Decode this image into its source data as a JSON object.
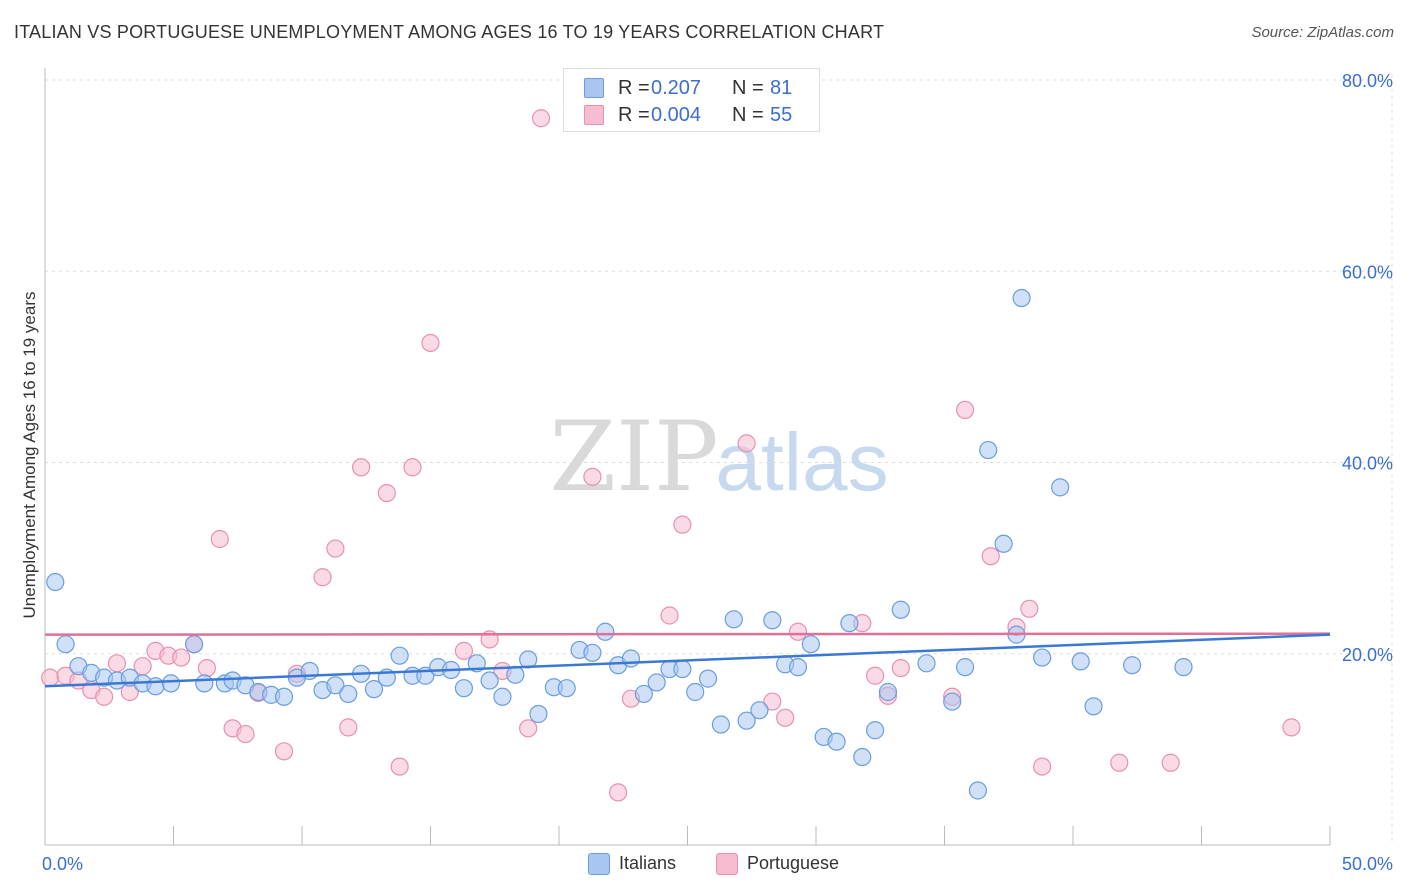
{
  "title": "ITALIAN VS PORTUGUESE UNEMPLOYMENT AMONG AGES 16 TO 19 YEARS CORRELATION CHART",
  "source": "Source: ZipAtlas.com",
  "watermark": {
    "zip": "ZIP",
    "atlas": "atlas"
  },
  "legend_top": {
    "rows": [
      {
        "r_label": "R =",
        "r_value": "0.207",
        "n_label": "N =",
        "n_value": "81"
      },
      {
        "r_label": "R =",
        "r_value": "0.004",
        "n_label": "N =",
        "n_value": "55"
      }
    ]
  },
  "legend_bottom": {
    "italians": "Italians",
    "portuguese": "Portuguese"
  },
  "colors": {
    "italians_fill": "#a8c6f0",
    "italians_stroke": "#6a9ee0",
    "italians_line": "#3a78d4",
    "portuguese_fill": "#f6bcd0",
    "portuguese_stroke": "#e990b0",
    "portuguese_line": "#e07098",
    "tick_text": "#3a6fd0",
    "grid": "#dddddd"
  },
  "chart_data": {
    "type": "scatter",
    "title": "ITALIAN VS PORTUGUESE UNEMPLOYMENT AMONG AGES 16 TO 19 YEARS CORRELATION CHART",
    "xlabel": "",
    "ylabel": "Unemployment Among Ages 16 to 19 years",
    "xlim": [
      0,
      50
    ],
    "ylim": [
      0,
      80
    ],
    "x_tick_labels": [
      "0.0%",
      "50.0%"
    ],
    "y_ticks": [
      20,
      40,
      60,
      80
    ],
    "y_tick_labels": [
      "20.0%",
      "40.0%",
      "60.0%",
      "80.0%"
    ],
    "grid": true,
    "legend_placement": "top-center",
    "series": [
      {
        "name": "Italians",
        "r": 0.207,
        "n": 81,
        "trend": [
          [
            0,
            16.6
          ],
          [
            50,
            22.0
          ]
        ],
        "points": [
          [
            0.4,
            27.5
          ],
          [
            0.8,
            21.0
          ],
          [
            1.3,
            18.7
          ],
          [
            1.8,
            18.0
          ],
          [
            2.3,
            17.5
          ],
          [
            2.8,
            17.2
          ],
          [
            3.3,
            17.5
          ],
          [
            3.8,
            16.9
          ],
          [
            4.3,
            16.6
          ],
          [
            4.9,
            16.9
          ],
          [
            5.8,
            21.0
          ],
          [
            6.2,
            16.9
          ],
          [
            7.0,
            16.9
          ],
          [
            7.3,
            17.2
          ],
          [
            7.8,
            16.7
          ],
          [
            8.3,
            16.0
          ],
          [
            8.8,
            15.7
          ],
          [
            9.3,
            15.5
          ],
          [
            9.8,
            17.5
          ],
          [
            10.3,
            18.2
          ],
          [
            10.8,
            16.2
          ],
          [
            11.3,
            16.7
          ],
          [
            11.8,
            15.8
          ],
          [
            12.3,
            17.9
          ],
          [
            12.8,
            16.3
          ],
          [
            13.3,
            17.5
          ],
          [
            13.8,
            19.8
          ],
          [
            14.3,
            17.7
          ],
          [
            14.8,
            17.7
          ],
          [
            15.3,
            18.6
          ],
          [
            15.8,
            18.3
          ],
          [
            16.3,
            16.4
          ],
          [
            16.8,
            19.0
          ],
          [
            17.3,
            17.2
          ],
          [
            17.8,
            15.5
          ],
          [
            18.3,
            17.8
          ],
          [
            18.8,
            19.4
          ],
          [
            19.2,
            13.7
          ],
          [
            19.8,
            16.5
          ],
          [
            20.3,
            16.4
          ],
          [
            20.8,
            20.4
          ],
          [
            21.3,
            20.1
          ],
          [
            21.8,
            22.3
          ],
          [
            22.3,
            18.8
          ],
          [
            22.8,
            19.5
          ],
          [
            23.3,
            15.8
          ],
          [
            23.8,
            17.0
          ],
          [
            24.3,
            18.4
          ],
          [
            24.8,
            18.4
          ],
          [
            25.3,
            16.0
          ],
          [
            25.8,
            17.4
          ],
          [
            26.3,
            12.6
          ],
          [
            26.8,
            23.6
          ],
          [
            27.3,
            13.0
          ],
          [
            27.8,
            14.1
          ],
          [
            28.3,
            23.5
          ],
          [
            28.8,
            18.9
          ],
          [
            29.3,
            18.6
          ],
          [
            29.8,
            21.0
          ],
          [
            30.3,
            11.3
          ],
          [
            30.8,
            10.8
          ],
          [
            31.3,
            23.2
          ],
          [
            31.8,
            9.2
          ],
          [
            32.3,
            12.0
          ],
          [
            32.8,
            16.0
          ],
          [
            33.3,
            24.6
          ],
          [
            34.3,
            19.0
          ],
          [
            35.3,
            15.0
          ],
          [
            35.8,
            18.6
          ],
          [
            36.3,
            5.7
          ],
          [
            36.7,
            41.3
          ],
          [
            37.3,
            31.5
          ],
          [
            37.8,
            22.0
          ],
          [
            38.0,
            57.2
          ],
          [
            38.8,
            19.6
          ],
          [
            39.5,
            37.4
          ],
          [
            40.3,
            19.2
          ],
          [
            40.8,
            14.5
          ],
          [
            42.3,
            18.8
          ],
          [
            44.3,
            18.6
          ]
        ]
      },
      {
        "name": "Portuguese",
        "r": 0.004,
        "n": 55,
        "trend": [
          [
            0,
            22.0
          ],
          [
            50,
            22.1
          ]
        ],
        "points": [
          [
            0.2,
            17.5
          ],
          [
            0.8,
            17.7
          ],
          [
            1.3,
            17.2
          ],
          [
            1.8,
            16.2
          ],
          [
            2.3,
            15.5
          ],
          [
            2.8,
            19.0
          ],
          [
            3.3,
            16.0
          ],
          [
            3.8,
            18.7
          ],
          [
            4.3,
            20.3
          ],
          [
            4.8,
            19.8
          ],
          [
            5.3,
            19.6
          ],
          [
            5.8,
            21.0
          ],
          [
            6.3,
            18.5
          ],
          [
            6.8,
            32.0
          ],
          [
            7.3,
            12.2
          ],
          [
            7.8,
            11.6
          ],
          [
            8.3,
            15.9
          ],
          [
            9.3,
            9.8
          ],
          [
            9.8,
            17.9
          ],
          [
            10.8,
            28.0
          ],
          [
            11.3,
            31.0
          ],
          [
            11.8,
            12.3
          ],
          [
            12.3,
            39.5
          ],
          [
            13.3,
            36.8
          ],
          [
            13.8,
            8.2
          ],
          [
            14.3,
            39.5
          ],
          [
            15.0,
            52.5
          ],
          [
            16.3,
            20.3
          ],
          [
            17.3,
            21.5
          ],
          [
            17.8,
            18.2
          ],
          [
            18.8,
            12.2
          ],
          [
            19.3,
            76.0
          ],
          [
            21.3,
            38.5
          ],
          [
            22.3,
            5.5
          ],
          [
            22.8,
            15.3
          ],
          [
            24.3,
            24.0
          ],
          [
            24.8,
            33.5
          ],
          [
            27.3,
            42.0
          ],
          [
            28.3,
            15.0
          ],
          [
            28.8,
            13.3
          ],
          [
            29.3,
            22.3
          ],
          [
            31.8,
            23.2
          ],
          [
            32.3,
            17.7
          ],
          [
            32.8,
            15.6
          ],
          [
            33.3,
            18.5
          ],
          [
            35.3,
            15.5
          ],
          [
            35.8,
            45.5
          ],
          [
            36.8,
            30.2
          ],
          [
            37.8,
            22.8
          ],
          [
            38.3,
            24.7
          ],
          [
            38.8,
            8.2
          ],
          [
            41.8,
            8.6
          ],
          [
            43.8,
            8.6
          ],
          [
            48.5,
            12.3
          ]
        ]
      }
    ]
  }
}
